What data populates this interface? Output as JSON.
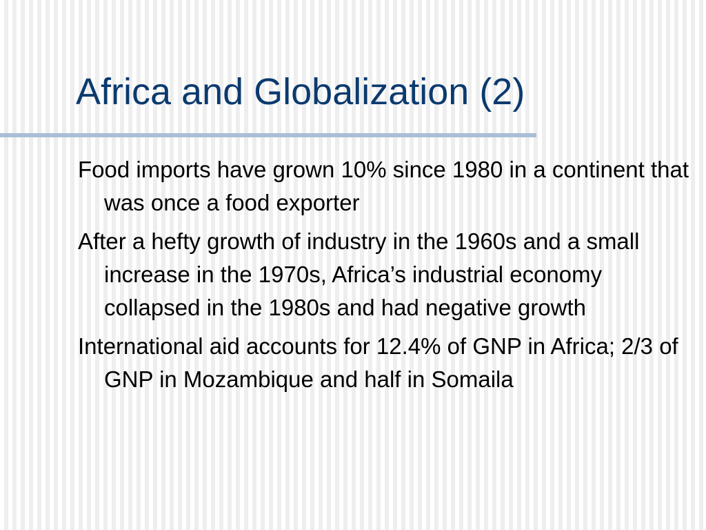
{
  "slide": {
    "title": "Africa and Globalization (2)",
    "bullets": [
      "Food imports have grown 10% since 1980 in a continent that was once a food exporter",
      "After a hefty growth of industry in the 1960s and a small increase in the 1970s, Africa’s industrial economy collapsed in the 1980s and had negative growth",
      "International aid accounts for 12.4% of GNP in Africa; 2/3 of GNP in Mozambique and half in Somaila"
    ]
  }
}
